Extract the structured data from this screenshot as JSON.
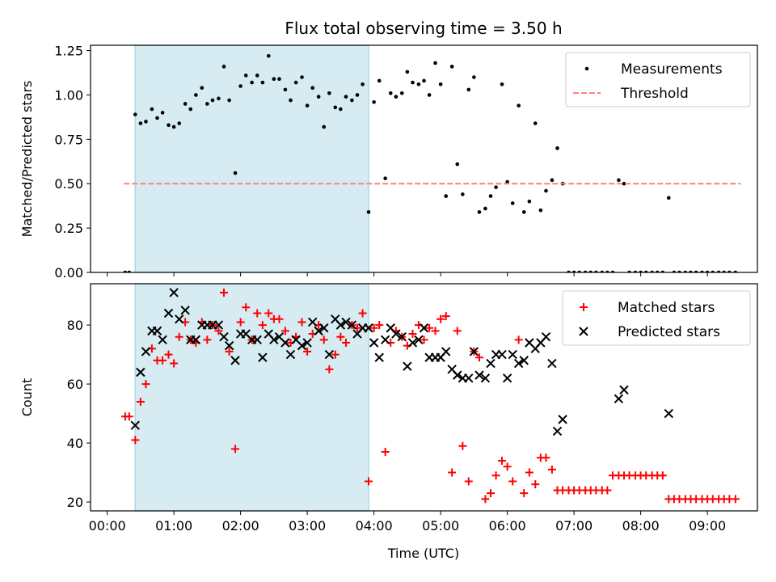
{
  "title": "Flux total observing time = 3.50 h",
  "chart_data": [
    {
      "type": "scatter",
      "ylabel": "Matched/Predicted stars",
      "ylim": [
        0,
        1.28
      ],
      "yticks": [
        "0.00",
        "0.25",
        "0.50",
        "0.75",
        "1.00",
        "1.25"
      ],
      "ytick_values": [
        0,
        0.25,
        0.5,
        0.75,
        1.0,
        1.25
      ],
      "xlim": [
        -0.25,
        9.75
      ],
      "shaded_span": [
        0.42,
        3.92
      ],
      "legend_position": "top-right",
      "series": [
        {
          "name": "Measurements",
          "marker": "dot",
          "color": "#000000",
          "x": [
            0.27,
            0.33,
            0.42,
            0.5,
            0.58,
            0.67,
            0.75,
            0.83,
            0.92,
            1.0,
            1.08,
            1.17,
            1.25,
            1.33,
            1.42,
            1.5,
            1.58,
            1.67,
            1.75,
            1.83,
            1.92,
            2.0,
            2.08,
            2.17,
            2.25,
            2.33,
            2.42,
            2.5,
            2.58,
            2.67,
            2.75,
            2.83,
            2.92,
            3.0,
            3.08,
            3.17,
            3.25,
            3.33,
            3.42,
            3.5,
            3.58,
            3.67,
            3.75,
            3.83,
            3.92,
            4.0,
            4.08,
            4.17,
            4.25,
            4.33,
            4.42,
            4.5,
            4.58,
            4.67,
            4.75,
            4.83,
            4.92,
            5.0,
            5.08,
            5.17,
            5.25,
            5.33,
            5.42,
            5.5,
            5.58,
            5.67,
            5.75,
            5.83,
            5.92,
            6.0,
            6.08,
            6.17,
            6.25,
            6.33,
            6.42,
            6.5,
            6.58,
            6.67,
            6.75,
            6.83,
            6.92,
            7.0,
            7.08,
            7.17,
            7.25,
            7.33,
            7.42,
            7.5,
            7.58,
            7.67,
            7.75,
            7.83,
            7.92,
            8.0,
            8.08,
            8.17,
            8.25,
            8.33,
            8.42,
            8.5,
            8.58,
            8.67,
            8.75,
            8.83,
            8.92,
            9.0,
            9.08,
            9.17,
            9.25,
            9.33,
            9.42
          ],
          "y": [
            0,
            0,
            0.89,
            0.84,
            0.85,
            0.92,
            0.87,
            0.9,
            0.83,
            0.82,
            0.84,
            0.95,
            0.92,
            1.0,
            1.04,
            0.95,
            0.97,
            0.98,
            1.16,
            0.97,
            0.56,
            1.05,
            1.11,
            1.07,
            1.11,
            1.07,
            1.22,
            1.09,
            1.09,
            1.03,
            0.97,
            1.07,
            1.1,
            0.94,
            1.04,
            0.99,
            0.82,
            1.01,
            0.93,
            0.92,
            0.99,
            0.97,
            1.0,
            1.06,
            0.34,
            0.96,
            1.08,
            0.53,
            1.01,
            0.99,
            1.01,
            1.13,
            1.07,
            1.06,
            1.08,
            1.0,
            1.18,
            1.06,
            0.43,
            1.16,
            0.61,
            0.44,
            1.03,
            1.1,
            0.34,
            0.36,
            0.43,
            0.48,
            1.06,
            0.51,
            0.39,
            0.94,
            0.34,
            0.4,
            0.84,
            0.35,
            0.46,
            0.52,
            0.7,
            0.5,
            0,
            0,
            0,
            0,
            0,
            0,
            0,
            0,
            0,
            0.52,
            0.5,
            0,
            0,
            0,
            0,
            0,
            0,
            0,
            0.42,
            0,
            0,
            0,
            0,
            0,
            0,
            0,
            0,
            0,
            0,
            0,
            0
          ]
        },
        {
          "name": "Threshold",
          "marker": "dashed-line",
          "color": "#ff7f7f",
          "x": [
            0.25,
            9.5
          ],
          "y": [
            0.5,
            0.5
          ]
        }
      ]
    },
    {
      "type": "scatter",
      "xlabel": "Time (UTC)",
      "ylabel": "Count",
      "ylim": [
        17,
        94
      ],
      "yticks": [
        "20",
        "40",
        "60",
        "80"
      ],
      "ytick_values": [
        20,
        40,
        60,
        80
      ],
      "xlim": [
        -0.25,
        9.75
      ],
      "xticks": [
        "00:00",
        "01:00",
        "02:00",
        "03:00",
        "04:00",
        "05:00",
        "06:00",
        "07:00",
        "08:00",
        "09:00"
      ],
      "xtick_values": [
        0,
        1,
        2,
        3,
        4,
        5,
        6,
        7,
        8,
        9
      ],
      "shaded_span": [
        0.42,
        3.92
      ],
      "legend_position": "top-right",
      "series": [
        {
          "name": "Matched stars",
          "marker": "plus",
          "color": "#ff0000",
          "x": [
            0.27,
            0.33,
            0.42,
            0.5,
            0.58,
            0.67,
            0.75,
            0.83,
            0.92,
            1.0,
            1.08,
            1.17,
            1.25,
            1.33,
            1.42,
            1.5,
            1.58,
            1.67,
            1.75,
            1.83,
            1.92,
            2.0,
            2.08,
            2.17,
            2.25,
            2.33,
            2.42,
            2.5,
            2.58,
            2.67,
            2.75,
            2.83,
            2.92,
            3.0,
            3.08,
            3.17,
            3.25,
            3.33,
            3.42,
            3.5,
            3.58,
            3.67,
            3.75,
            3.83,
            3.92,
            4.0,
            4.08,
            4.17,
            4.25,
            4.33,
            4.42,
            4.5,
            4.58,
            4.67,
            4.75,
            4.83,
            4.92,
            5.0,
            5.08,
            5.17,
            5.25,
            5.33,
            5.42,
            5.5,
            5.58,
            5.67,
            5.75,
            5.83,
            5.92,
            6.0,
            6.08,
            6.17,
            6.25,
            6.33,
            6.42,
            6.5,
            6.58,
            6.67,
            6.75,
            6.83,
            6.92,
            7.0,
            7.08,
            7.17,
            7.25,
            7.33,
            7.42,
            7.5,
            7.58,
            7.67,
            7.75,
            7.83,
            7.92,
            8.0,
            8.08,
            8.17,
            8.25,
            8.33,
            8.42,
            8.5,
            8.58,
            8.67,
            8.75,
            8.83,
            8.92,
            9.0,
            9.08,
            9.17,
            9.25,
            9.33,
            9.42
          ],
          "y": [
            49,
            49,
            41,
            54,
            60,
            72,
            68,
            68,
            70,
            67,
            76,
            81,
            75,
            74,
            81,
            75,
            80,
            78,
            91,
            71,
            38,
            81,
            86,
            75,
            84,
            80,
            84,
            82,
            82,
            78,
            74,
            76,
            81,
            71,
            77,
            80,
            75,
            65,
            70,
            76,
            74,
            80,
            79,
            84,
            27,
            79,
            80,
            37,
            74,
            78,
            76,
            73,
            77,
            80,
            75,
            79,
            78,
            82,
            83,
            30,
            78,
            39,
            27,
            71,
            69,
            21,
            23,
            29,
            34,
            32,
            27,
            75,
            23,
            30,
            26,
            35,
            35,
            31,
            24,
            24,
            24,
            24,
            24,
            24,
            24,
            24,
            24,
            24,
            29,
            29,
            29,
            29,
            29,
            29,
            29,
            29,
            29,
            29,
            21,
            21,
            21,
            21,
            21,
            21,
            21,
            21,
            21,
            21,
            21,
            21,
            21
          ]
        },
        {
          "name": "Predicted stars",
          "marker": "x",
          "color": "#000000",
          "x": [
            0.42,
            0.5,
            0.58,
            0.67,
            0.75,
            0.83,
            0.92,
            1.0,
            1.08,
            1.17,
            1.25,
            1.33,
            1.42,
            1.5,
            1.58,
            1.67,
            1.75,
            1.83,
            1.92,
            2.0,
            2.08,
            2.17,
            2.25,
            2.33,
            2.42,
            2.5,
            2.58,
            2.67,
            2.75,
            2.83,
            2.92,
            3.0,
            3.08,
            3.17,
            3.25,
            3.33,
            3.42,
            3.5,
            3.58,
            3.67,
            3.75,
            3.83,
            3.92,
            4.0,
            4.08,
            4.17,
            4.25,
            4.33,
            4.42,
            4.5,
            4.58,
            4.67,
            4.75,
            4.83,
            4.92,
            5.0,
            5.08,
            5.17,
            5.25,
            5.33,
            5.42,
            5.5,
            5.58,
            5.67,
            5.75,
            5.83,
            5.92,
            6.0,
            6.08,
            6.17,
            6.25,
            6.33,
            6.42,
            6.5,
            6.58,
            6.67,
            6.75,
            6.83,
            7.67,
            7.75,
            8.42
          ],
          "y": [
            46,
            64,
            71,
            78,
            78,
            75,
            84,
            91,
            82,
            85,
            75,
            75,
            80,
            80,
            80,
            80,
            76,
            73,
            68,
            77,
            77,
            75,
            75,
            69,
            77,
            75,
            76,
            74,
            70,
            75,
            73,
            74,
            81,
            78,
            79,
            70,
            82,
            80,
            81,
            80,
            77,
            79,
            79,
            74,
            69,
            75,
            79,
            77,
            76,
            66,
            74,
            75,
            79,
            69,
            69,
            69,
            71,
            65,
            63,
            62,
            62,
            71,
            63,
            62,
            67,
            70,
            70,
            62,
            70,
            67,
            68,
            74,
            72,
            74,
            76,
            67,
            44,
            48,
            55,
            58,
            50
          ]
        }
      ]
    }
  ]
}
